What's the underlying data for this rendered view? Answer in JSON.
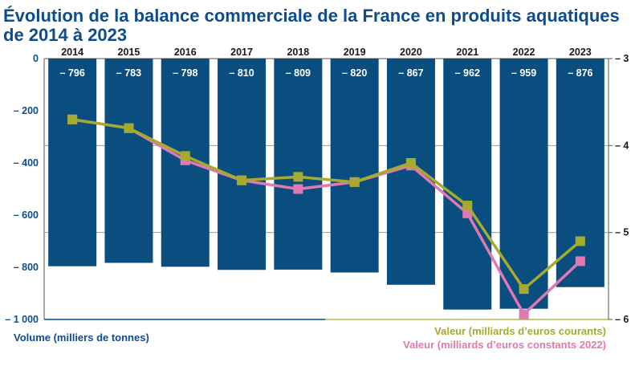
{
  "title": "Évolution de la balance commerciale de la France en produits aquatiques de 2014 à 2023",
  "title_lines": [
    "Évolution de la balance commerciale de la France en produits aquatiques",
    "de 2014 à 2023"
  ],
  "chart_data": {
    "type": "bar",
    "categories": [
      "2014",
      "2015",
      "2016",
      "2017",
      "2018",
      "2019",
      "2020",
      "2021",
      "2022",
      "2023"
    ],
    "bar_labels": [
      "– 796",
      "– 783",
      "– 798",
      "– 810",
      "– 809",
      "– 820",
      "– 867",
      "– 962",
      "– 959",
      "– 876"
    ],
    "series": [
      {
        "name": "Volume (milliers de tonnes)",
        "type": "bar",
        "axis": "left",
        "values": [
          -796,
          -783,
          -798,
          -810,
          -809,
          -820,
          -867,
          -962,
          -959,
          -876
        ],
        "color": "#0a4e80"
      },
      {
        "name": "Valeur (milliards d’euros courants)",
        "type": "line",
        "axis": "right",
        "values": [
          -3.7,
          -3.8,
          -4.12,
          -4.4,
          -4.36,
          -4.42,
          -4.2,
          -4.69,
          -5.65,
          -5.1
        ],
        "color": "#a4ab2e"
      },
      {
        "name": "Valeur (milliards d’euros constants 2022)",
        "type": "line",
        "axis": "right",
        "values": [
          -3.7,
          -3.8,
          -4.17,
          -4.4,
          -4.5,
          -4.42,
          -4.23,
          -4.78,
          -5.94,
          -5.33
        ],
        "color": "#e278b3"
      }
    ],
    "y_left": {
      "label": "Volume (milliers de tonnes)",
      "min": -1000,
      "max": 0,
      "ticks": [
        0,
        -200,
        -400,
        -600,
        -800,
        -1000
      ],
      "tick_labels": [
        "0",
        "– 200",
        "– 400",
        "– 600",
        "– 800",
        "– 1 000"
      ]
    },
    "y_right": {
      "min": -6,
      "max": -3,
      "ticks": [
        -3,
        -4,
        -5,
        -6
      ],
      "tick_labels": [
        "– 3",
        "– 4",
        "– 5",
        "– 6"
      ]
    },
    "legend": [
      {
        "label": "Volume (milliers de tonnes)",
        "position": "bottom-left"
      },
      {
        "label": "Valeur (milliards d’euros courants)",
        "position": "bottom-right",
        "color": "#a4ab2e"
      },
      {
        "label": "Valeur (milliards d’euros constants 2022)",
        "position": "bottom-right",
        "color": "#e278b3"
      }
    ],
    "grid": "horizontal lines at right-axis ticks"
  }
}
